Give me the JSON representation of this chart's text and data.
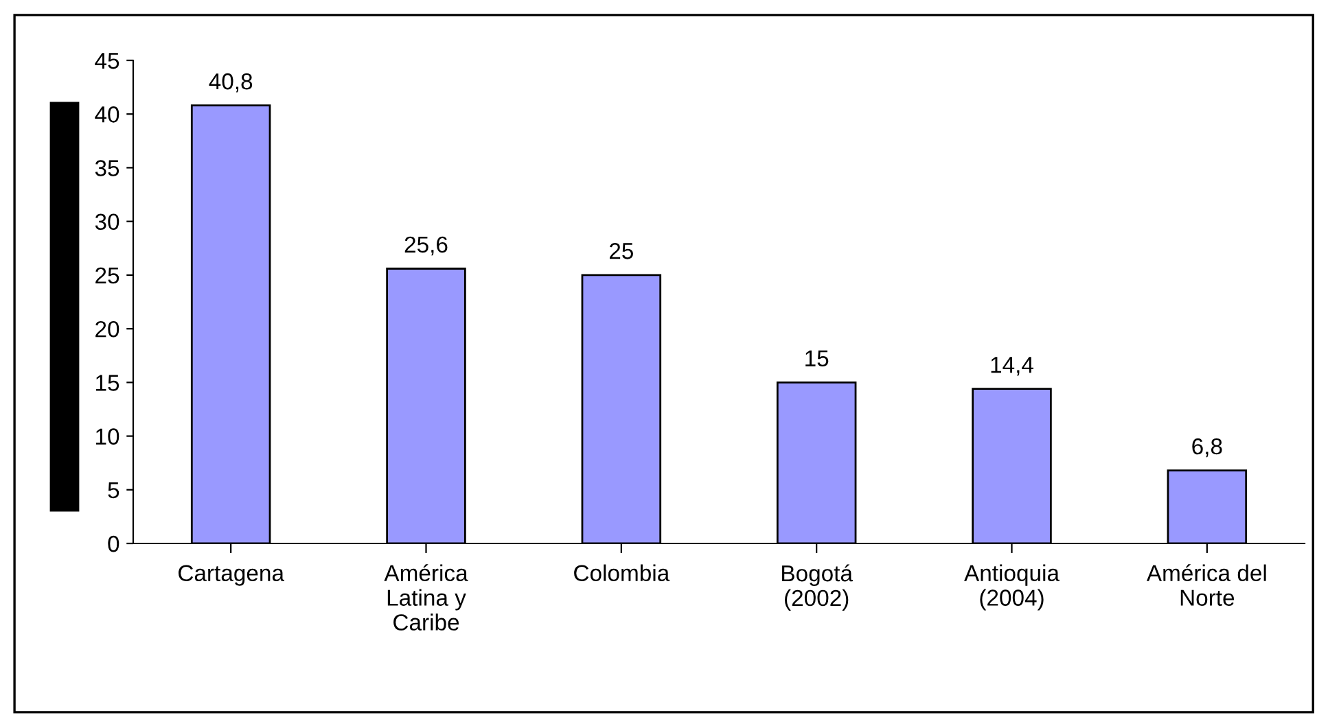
{
  "chart_data": {
    "type": "bar",
    "categories": [
      "Cartagena",
      "América\nLatina y\nCaribe",
      "Colombia",
      "Bogotá\n(2002)",
      "Antioquia\n(2004)",
      "América del\nNorte"
    ],
    "values": [
      40.8,
      25.6,
      25,
      15,
      14.4,
      6.8
    ],
    "value_labels": [
      "40,8",
      "25,6",
      "25",
      "15",
      "14,4",
      "6,8"
    ],
    "color": "#9999ff",
    "ylim": [
      0,
      45
    ],
    "yticks": [
      0,
      5,
      10,
      15,
      20,
      25,
      30,
      35,
      40,
      45
    ],
    "grid": false,
    "legend": false
  }
}
